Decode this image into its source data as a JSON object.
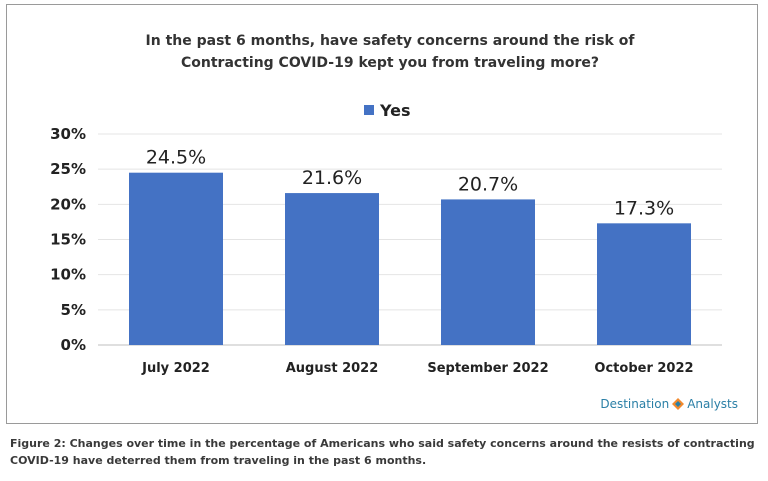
{
  "chart_data": {
    "type": "bar",
    "title": "In the past 6 months, have safety concerns around the risk of\nContracting COVID-19 kept you from traveling more?",
    "categories": [
      "July 2022",
      "August 2022",
      "September 2022",
      "October 2022"
    ],
    "series": [
      {
        "name": "Yes",
        "values": [
          24.5,
          21.6,
          20.7,
          17.3
        ],
        "color": "#4472c4"
      }
    ],
    "data_labels": [
      "24.5%",
      "21.6%",
      "20.7%",
      "17.3%"
    ],
    "yticks": [
      "0%",
      "5%",
      "10%",
      "15%",
      "20%",
      "25%",
      "30%"
    ],
    "ylim": [
      0,
      30
    ],
    "xlabel": "",
    "ylabel": "",
    "grid": true,
    "legend_position": "top"
  },
  "logo": {
    "left_text": "Destination",
    "right_text": "Analysts"
  },
  "caption": "Figure 2: Changes over time in the percentage of Americans who said safety concerns around the resists of contracting COVID-19 have deterred them from traveling in the past 6 months."
}
